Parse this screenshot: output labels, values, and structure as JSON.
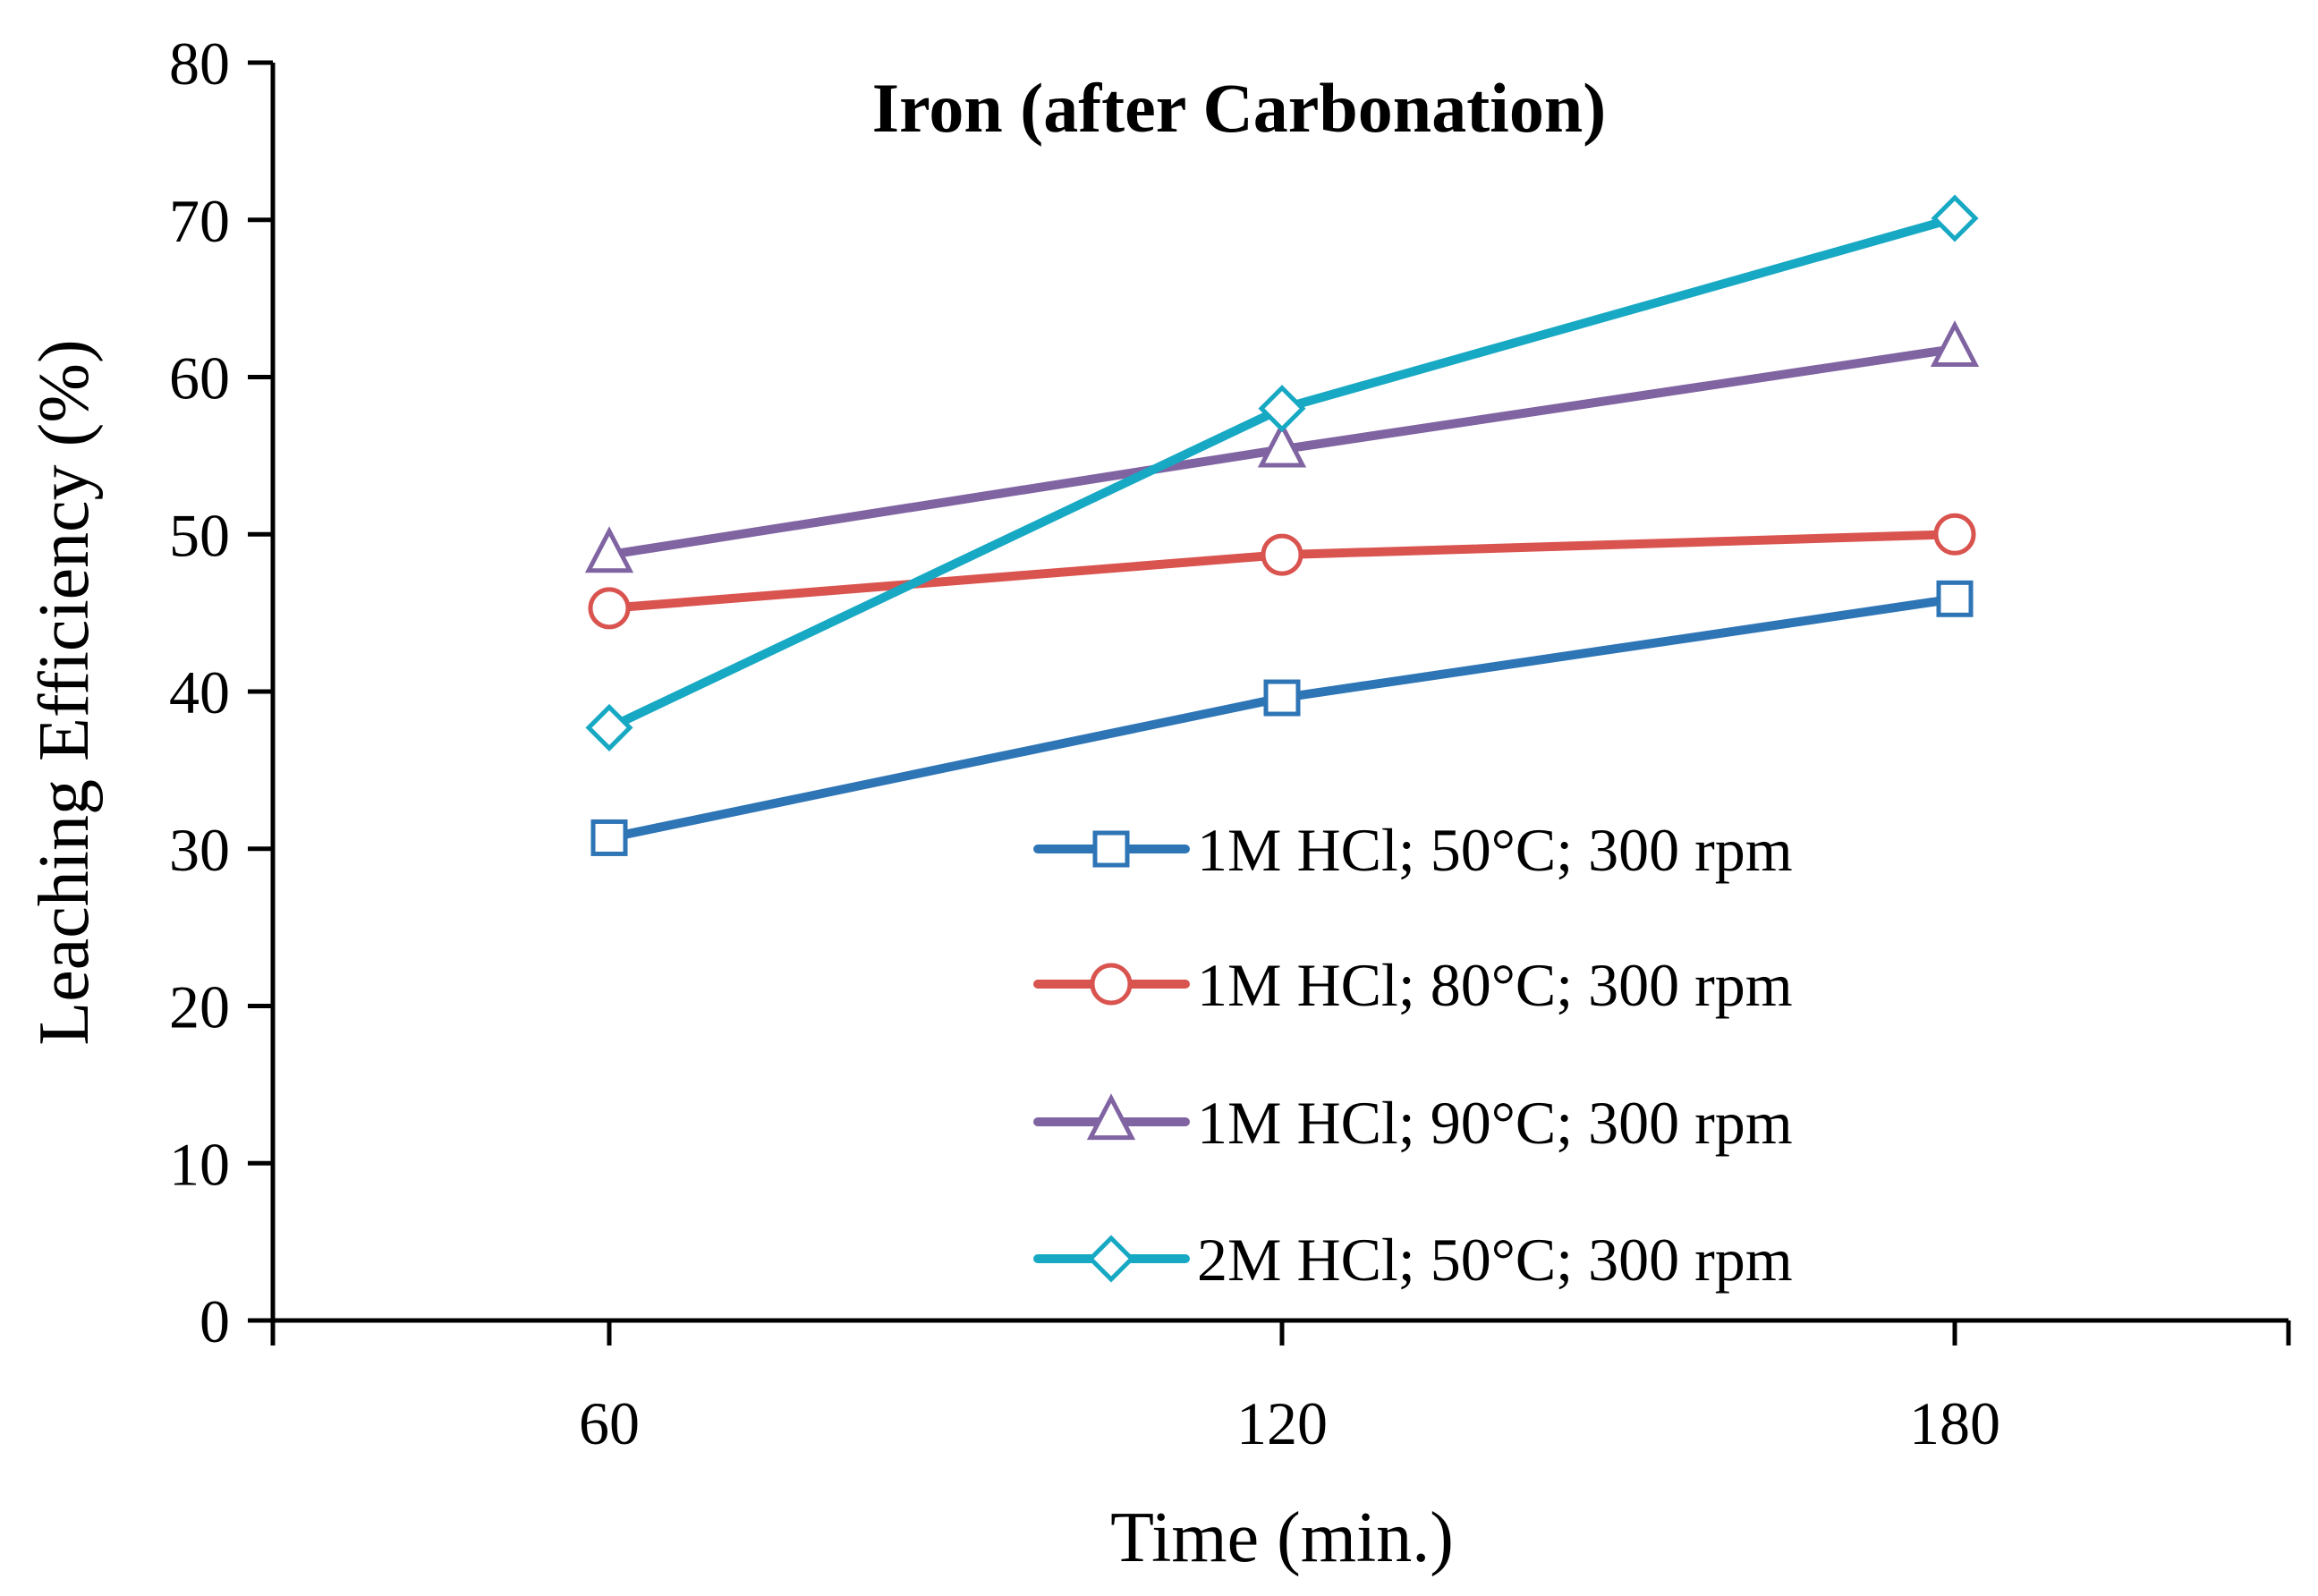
{
  "chart_data": {
    "type": "line",
    "title": "Iron (after Carbonation)",
    "xlabel": "Time (min.)",
    "ylabel": "Leaching Efficiency (%)",
    "categories": [
      "60",
      "120",
      "180"
    ],
    "x": [
      60,
      120,
      180
    ],
    "ylim": [
      0,
      80
    ],
    "yticks": [
      "0",
      "10",
      "20",
      "30",
      "40",
      "50",
      "60",
      "70",
      "80"
    ],
    "grid": false,
    "legend_position": "bottom-right",
    "series": [
      {
        "name": "1M HCl; 50°C; 300 rpm",
        "values": [
          30.7,
          39.6,
          45.9
        ],
        "color": "#2E75B6",
        "marker": "square"
      },
      {
        "name": "1M HCl; 80°C; 300 rpm",
        "values": [
          45.3,
          48.7,
          50.0
        ],
        "color": "#D9534F",
        "marker": "circle"
      },
      {
        "name": "1M HCl; 90°C; 300 rpm",
        "values": [
          48.7,
          55.4,
          61.8
        ],
        "color": "#8064A2",
        "marker": "triangle"
      },
      {
        "name": "2M HCl; 50°C; 300 rpm",
        "values": [
          37.7,
          58.0,
          70.1
        ],
        "color": "#17A9C3",
        "marker": "diamond"
      }
    ]
  }
}
